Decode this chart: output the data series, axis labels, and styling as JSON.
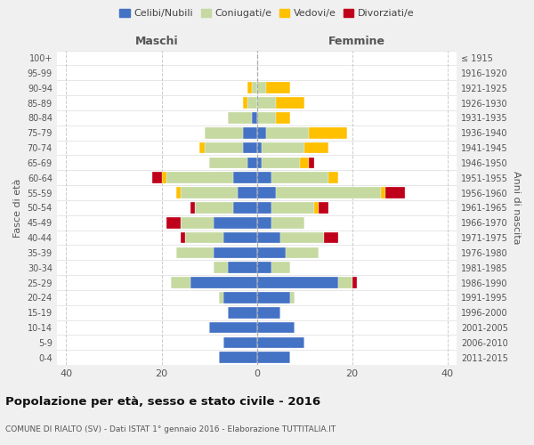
{
  "age_groups": [
    "0-4",
    "5-9",
    "10-14",
    "15-19",
    "20-24",
    "25-29",
    "30-34",
    "35-39",
    "40-44",
    "45-49",
    "50-54",
    "55-59",
    "60-64",
    "65-69",
    "70-74",
    "75-79",
    "80-84",
    "85-89",
    "90-94",
    "95-99",
    "100+"
  ],
  "birth_years": [
    "2011-2015",
    "2006-2010",
    "2001-2005",
    "1996-2000",
    "1991-1995",
    "1986-1990",
    "1981-1985",
    "1976-1980",
    "1971-1975",
    "1966-1970",
    "1961-1965",
    "1956-1960",
    "1951-1955",
    "1946-1950",
    "1941-1945",
    "1936-1940",
    "1931-1935",
    "1926-1930",
    "1921-1925",
    "1916-1920",
    "≤ 1915"
  ],
  "maschi": {
    "celibi": [
      8,
      7,
      10,
      6,
      7,
      14,
      6,
      9,
      7,
      9,
      5,
      4,
      5,
      2,
      3,
      3,
      1,
      0,
      0,
      0,
      0
    ],
    "coniugati": [
      0,
      0,
      0,
      0,
      1,
      4,
      3,
      8,
      8,
      7,
      8,
      12,
      14,
      8,
      8,
      8,
      5,
      2,
      1,
      0,
      0
    ],
    "vedovi": [
      0,
      0,
      0,
      0,
      0,
      0,
      0,
      0,
      0,
      0,
      0,
      1,
      1,
      0,
      1,
      0,
      0,
      1,
      1,
      0,
      0
    ],
    "divorziati": [
      0,
      0,
      0,
      0,
      0,
      0,
      0,
      0,
      1,
      3,
      1,
      0,
      2,
      0,
      0,
      0,
      0,
      0,
      0,
      0,
      0
    ]
  },
  "femmine": {
    "nubili": [
      7,
      10,
      8,
      5,
      7,
      17,
      3,
      6,
      5,
      3,
      3,
      4,
      3,
      1,
      1,
      2,
      0,
      0,
      0,
      0,
      0
    ],
    "coniugate": [
      0,
      0,
      0,
      0,
      1,
      3,
      4,
      7,
      9,
      7,
      9,
      22,
      12,
      8,
      9,
      9,
      4,
      4,
      2,
      0,
      0
    ],
    "vedove": [
      0,
      0,
      0,
      0,
      0,
      0,
      0,
      0,
      0,
      0,
      1,
      1,
      2,
      2,
      5,
      8,
      3,
      6,
      5,
      0,
      0
    ],
    "divorziate": [
      0,
      0,
      0,
      0,
      0,
      1,
      0,
      0,
      3,
      0,
      2,
      4,
      0,
      1,
      0,
      0,
      0,
      0,
      0,
      0,
      0
    ]
  },
  "colors": {
    "celibe": "#4472c4",
    "coniugato": "#c5d9a0",
    "vedovo": "#ffc000",
    "divorziato": "#c0001a"
  },
  "xlim": 42,
  "title": "Popolazione per età, sesso e stato civile - 2016",
  "subtitle": "COMUNE DI RIALTO (SV) - Dati ISTAT 1° gennaio 2016 - Elaborazione TUTTITALIA.IT",
  "bg_color": "#f0f0f0",
  "plot_bg": "#ffffff"
}
